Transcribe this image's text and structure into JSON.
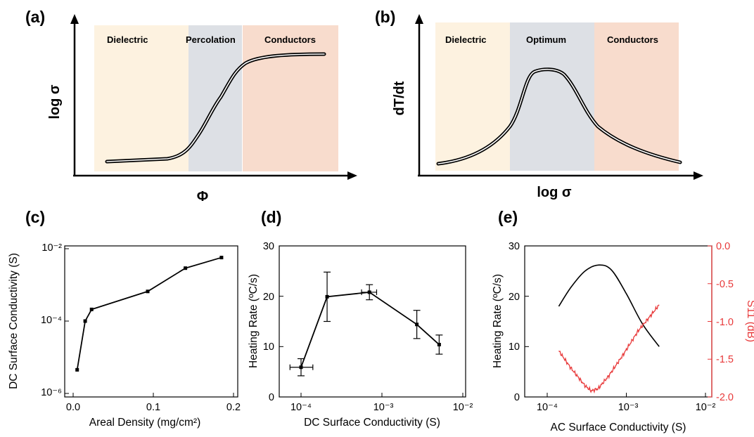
{
  "colors": {
    "dielectric": "#fdf2e0",
    "middle": "#dde0e5",
    "conductors": "#f8dccd",
    "red": "#e8393a",
    "black": "#000000"
  },
  "chart_data": [
    {
      "panel": "(a)",
      "type": "line",
      "schematic": true,
      "regions": [
        "Dielectric",
        "Percolation",
        "Conductors"
      ],
      "xlabel": "Φ",
      "ylabel": "log σ",
      "curve": "sigmoid (percolation transition)"
    },
    {
      "panel": "(b)",
      "type": "line",
      "schematic": true,
      "regions": [
        "Dielectric",
        "Optimum",
        "Conductors"
      ],
      "xlabel": "log σ",
      "ylabel": "dT/dt",
      "curve": "peak at optimum"
    },
    {
      "panel": "(c)",
      "type": "line",
      "xlabel": "Areal Density (mg/cm²)",
      "ylabel": "DC Surface Conductivity (S)",
      "xlim": [
        0,
        0.2
      ],
      "ylim": [
        1e-06,
        0.01
      ],
      "ylog": true,
      "x_ticks": [
        "0.0",
        "0.1",
        "0.2"
      ],
      "y_ticks": [
        "10⁻²",
        "10⁻⁴",
        "10⁻⁶"
      ],
      "x": [
        0.005,
        0.015,
        0.023,
        0.093,
        0.14,
        0.185
      ],
      "y": [
        4.5e-06,
        0.0001,
        0.00021,
        0.00066,
        0.0029,
        0.0057
      ]
    },
    {
      "panel": "(d)",
      "type": "scatter",
      "xlabel": "DC Surface Conductivity (S)",
      "ylabel": "Heating Rate (ºC/s)",
      "xlim": [
        5e-05,
        0.01
      ],
      "xlog": true,
      "ylim": [
        0,
        30
      ],
      "x_ticks": [
        "10⁻⁴",
        "10⁻³",
        "10⁻²"
      ],
      "y_ticks": [
        "0",
        "10",
        "20",
        "30"
      ],
      "points": [
        {
          "x": 0.0001,
          "y": 5.9,
          "y_err": 1.7,
          "x_lo": 7.3e-05,
          "x_hi": 0.00014
        },
        {
          "x": 0.00021,
          "y": 19.9,
          "y_err": 4.9
        },
        {
          "x": 0.0007,
          "y": 20.8,
          "y_err": 1.5,
          "x_lo": 0.00056,
          "x_hi": 0.00086
        },
        {
          "x": 0.0027,
          "y": 14.4,
          "y_err": 2.8
        },
        {
          "x": 0.0051,
          "y": 10.4,
          "y_err": 1.9
        }
      ]
    },
    {
      "panel": "(e)",
      "type": "line",
      "xlabel": "AC Surface Conductivity (S)",
      "ylabel": "Heating Rate (ºC/s)",
      "y2label": "S11 (dB)",
      "xlim": [
        5e-05,
        0.01
      ],
      "xlog": true,
      "ylim": [
        0,
        30
      ],
      "y2lim": [
        -2.0,
        0.0
      ],
      "x_ticks": [
        "10⁻⁴",
        "10⁻³",
        "10⁻²"
      ],
      "y_ticks": [
        "0",
        "10",
        "20",
        "30"
      ],
      "y2_ticks": [
        "0.0",
        "-0.5",
        "-1.0",
        "-1.5",
        "-2.0"
      ],
      "heating_series": {
        "x": [
          0.00014,
          0.0002,
          0.0003,
          0.00045,
          0.00065,
          0.001,
          0.0016,
          0.0026
        ],
        "y": [
          18.0,
          21.8,
          25.0,
          26.2,
          25.2,
          20.5,
          14.5,
          10.0
        ]
      },
      "s11_series": {
        "x": [
          0.00014,
          0.0002,
          0.0003,
          0.00036,
          0.00044,
          0.0006,
          0.0009,
          0.0014,
          0.002,
          0.0026
        ],
        "y": [
          -1.39,
          -1.62,
          -1.85,
          -1.92,
          -1.89,
          -1.72,
          -1.45,
          -1.13,
          -0.93,
          -0.78
        ]
      }
    }
  ]
}
